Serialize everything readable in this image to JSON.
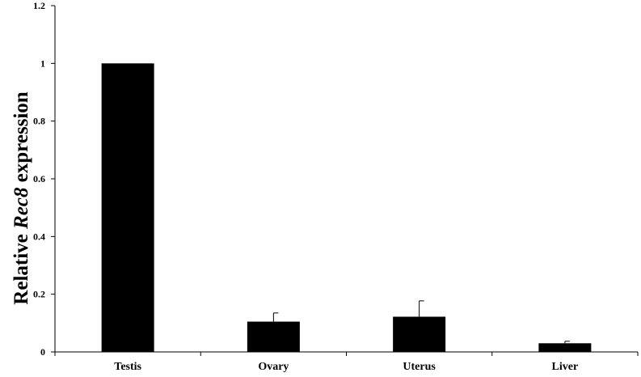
{
  "chart_data": {
    "type": "bar",
    "title": "",
    "xlabel": "",
    "ylabel": {
      "prefix": "Relative ",
      "gene": "Rec8",
      "suffix": " expression"
    },
    "categories": [
      "Testis",
      "Ovary",
      "Uterus",
      "Liver"
    ],
    "values": [
      1.0,
      0.105,
      0.122,
      0.03
    ],
    "errors": [
      0.0,
      0.03,
      0.055,
      0.007
    ],
    "ylim": [
      0,
      1.2
    ],
    "yticks": [
      0,
      0.2,
      0.4,
      0.6,
      0.8,
      1,
      1.2
    ],
    "ytick_labels": [
      "0",
      "0.2",
      "0.4",
      "0.6",
      "0.8",
      "1",
      "1.2"
    ],
    "grid": false,
    "legend": "none",
    "bar_color": "#000000"
  }
}
